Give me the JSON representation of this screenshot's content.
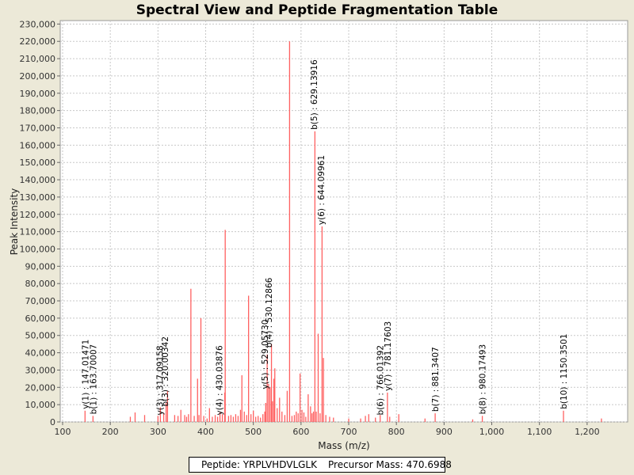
{
  "window": {
    "title": "Spectral View and Peptide Fragmentation Table"
  },
  "info": {
    "peptide": "Peptide: YRPLVHDVLGLK",
    "precursor": "Precursor Mass: 470.6988"
  },
  "colors": {
    "plot_bg": "#ffffff",
    "grid": "#c8c8c8",
    "peak": "#ff6060",
    "frame_bg": "#ECE9D8"
  },
  "chart_data": {
    "type": "bar",
    "title": "Spectral View and Peptide Fragmentation Table",
    "xlabel": "Mass (m/z)",
    "ylabel": "Peak Intensity",
    "xlim": [
      95,
      1285
    ],
    "ylim": [
      0,
      232000
    ],
    "grid": true,
    "x_ticks": [
      100,
      200,
      300,
      400,
      500,
      600,
      700,
      800,
      900,
      1000,
      1100,
      1200
    ],
    "x_tick_labels": [
      "100",
      "200",
      "300",
      "400",
      "500",
      "600",
      "700",
      "800",
      "900",
      "1,000",
      "1,100",
      "1,200"
    ],
    "y_ticks": [
      0,
      10000,
      20000,
      30000,
      40000,
      50000,
      60000,
      70000,
      80000,
      90000,
      100000,
      110000,
      120000,
      130000,
      140000,
      150000,
      160000,
      170000,
      180000,
      190000,
      200000,
      210000,
      220000,
      230000
    ],
    "y_tick_labels": [
      "0",
      "10,000",
      "20,000",
      "30,000",
      "40,000",
      "50,000",
      "60,000",
      "70,000",
      "80,000",
      "90,000",
      "100,000",
      "110,000",
      "120,000",
      "130,000",
      "140,000",
      "150,000",
      "160,000",
      "170,000",
      "180,000",
      "190,000",
      "200,000",
      "210,000",
      "220,000",
      "230,000"
    ],
    "peaks": [
      {
        "mz": 147.0,
        "intensity": 6500
      },
      {
        "mz": 163.7,
        "intensity": 3500
      },
      {
        "mz": 242.0,
        "intensity": 3000
      },
      {
        "mz": 252.0,
        "intensity": 5500
      },
      {
        "mz": 272.0,
        "intensity": 4000
      },
      {
        "mz": 300.0,
        "intensity": 3500
      },
      {
        "mz": 305.0,
        "intensity": 8500
      },
      {
        "mz": 312.0,
        "intensity": 5000
      },
      {
        "mz": 317.0,
        "intensity": 11000
      },
      {
        "mz": 320.0,
        "intensity": 18000
      },
      {
        "mz": 335.0,
        "intensity": 4000
      },
      {
        "mz": 342.0,
        "intensity": 3500
      },
      {
        "mz": 348.0,
        "intensity": 7000
      },
      {
        "mz": 356.0,
        "intensity": 4000
      },
      {
        "mz": 360.0,
        "intensity": 3000
      },
      {
        "mz": 364.0,
        "intensity": 4500
      },
      {
        "mz": 369.0,
        "intensity": 77000
      },
      {
        "mz": 376.0,
        "intensity": 3500
      },
      {
        "mz": 383.0,
        "intensity": 25000
      },
      {
        "mz": 386.0,
        "intensity": 4000
      },
      {
        "mz": 390.0,
        "intensity": 60000
      },
      {
        "mz": 396.0,
        "intensity": 3500
      },
      {
        "mz": 403.0,
        "intensity": 2000
      },
      {
        "mz": 408.0,
        "intensity": 8000
      },
      {
        "mz": 414.0,
        "intensity": 3000
      },
      {
        "mz": 420.0,
        "intensity": 4000
      },
      {
        "mz": 425.0,
        "intensity": 3000
      },
      {
        "mz": 430.0,
        "intensity": 5500
      },
      {
        "mz": 435.0,
        "intensity": 4500
      },
      {
        "mz": 440.0,
        "intensity": 17000
      },
      {
        "mz": 441.0,
        "intensity": 111000
      },
      {
        "mz": 448.0,
        "intensity": 3500
      },
      {
        "mz": 453.0,
        "intensity": 4000
      },
      {
        "mz": 458.0,
        "intensity": 3000
      },
      {
        "mz": 463.0,
        "intensity": 4500
      },
      {
        "mz": 468.0,
        "intensity": 3500
      },
      {
        "mz": 473.0,
        "intensity": 7000
      },
      {
        "mz": 476.0,
        "intensity": 27000
      },
      {
        "mz": 481.0,
        "intensity": 6000
      },
      {
        "mz": 486.0,
        "intensity": 4000
      },
      {
        "mz": 490.0,
        "intensity": 73000
      },
      {
        "mz": 495.0,
        "intensity": 4500
      },
      {
        "mz": 500.0,
        "intensity": 6500
      },
      {
        "mz": 505.0,
        "intensity": 3000
      },
      {
        "mz": 510.0,
        "intensity": 3500
      },
      {
        "mz": 515.0,
        "intensity": 2500
      },
      {
        "mz": 520.0,
        "intensity": 4500
      },
      {
        "mz": 524.0,
        "intensity": 6000
      },
      {
        "mz": 526.0,
        "intensity": 11000
      },
      {
        "mz": 529.0,
        "intensity": 39000
      },
      {
        "mz": 532.0,
        "intensity": 22000
      },
      {
        "mz": 535.0,
        "intensity": 20000
      },
      {
        "mz": 538.0,
        "intensity": 45000
      },
      {
        "mz": 540.0,
        "intensity": 12000
      },
      {
        "mz": 543.0,
        "intensity": 25000
      },
      {
        "mz": 545.0,
        "intensity": 31000
      },
      {
        "mz": 550.0,
        "intensity": 8000
      },
      {
        "mz": 555.0,
        "intensity": 14000
      },
      {
        "mz": 560.0,
        "intensity": 6000
      },
      {
        "mz": 566.0,
        "intensity": 4000
      },
      {
        "mz": 571.0,
        "intensity": 18000
      },
      {
        "mz": 576.0,
        "intensity": 220000
      },
      {
        "mz": 581.0,
        "intensity": 3500
      },
      {
        "mz": 586.0,
        "intensity": 4000
      },
      {
        "mz": 590.0,
        "intensity": 6000
      },
      {
        "mz": 594.0,
        "intensity": 5000
      },
      {
        "mz": 598.0,
        "intensity": 28000
      },
      {
        "mz": 602.0,
        "intensity": 7000
      },
      {
        "mz": 606.0,
        "intensity": 5500
      },
      {
        "mz": 610.0,
        "intensity": 3000
      },
      {
        "mz": 615.0,
        "intensity": 16000
      },
      {
        "mz": 620.0,
        "intensity": 9000
      },
      {
        "mz": 623.0,
        "intensity": 5000
      },
      {
        "mz": 626.0,
        "intensity": 6000
      },
      {
        "mz": 629.1,
        "intensity": 168000
      },
      {
        "mz": 632.0,
        "intensity": 6000
      },
      {
        "mz": 636.0,
        "intensity": 51000
      },
      {
        "mz": 640.0,
        "intensity": 5000
      },
      {
        "mz": 644.1,
        "intensity": 113000
      },
      {
        "mz": 647.0,
        "intensity": 37000
      },
      {
        "mz": 652.0,
        "intensity": 4000
      },
      {
        "mz": 660.0,
        "intensity": 3000
      },
      {
        "mz": 668.0,
        "intensity": 2500
      },
      {
        "mz": 700.0,
        "intensity": 2000
      },
      {
        "mz": 725.0,
        "intensity": 2000
      },
      {
        "mz": 735.0,
        "intensity": 3500
      },
      {
        "mz": 742.0,
        "intensity": 4500
      },
      {
        "mz": 756.0,
        "intensity": 2500
      },
      {
        "mz": 766.0,
        "intensity": 4000
      },
      {
        "mz": 781.2,
        "intensity": 17000
      },
      {
        "mz": 786.0,
        "intensity": 3000
      },
      {
        "mz": 805.0,
        "intensity": 4500
      },
      {
        "mz": 860.0,
        "intensity": 2000
      },
      {
        "mz": 881.3,
        "intensity": 5000
      },
      {
        "mz": 960.0,
        "intensity": 1500
      },
      {
        "mz": 980.2,
        "intensity": 3500
      },
      {
        "mz": 1150.4,
        "intensity": 6500
      },
      {
        "mz": 1230.0,
        "intensity": 2000
      }
    ],
    "annotations": [
      {
        "text": "y(1) : 147.01471",
        "mz": 147.0,
        "intensity": 6500
      },
      {
        "text": "b(1) : 163.70007",
        "mz": 163.7,
        "intensity": 3500
      },
      {
        "text": "y(3) : 317.09158",
        "mz": 303.5,
        "intensity": 3000
      },
      {
        "text": "b(3) : 320.00342",
        "mz": 314.5,
        "intensity": 8000
      },
      {
        "text": "y(4) : 430.03876",
        "mz": 428.0,
        "intensity": 3000
      },
      {
        "text": "y(5) : 529.05730",
        "mz": 524.0,
        "intensity": 18000
      },
      {
        "text": "b(4) : 530.12866",
        "mz": 532.0,
        "intensity": 42000
      },
      {
        "text": "b(5) : 629.13916",
        "mz": 627.0,
        "intensity": 168000
      },
      {
        "text": "y(6) : 644.09961",
        "mz": 642.0,
        "intensity": 113000
      },
      {
        "text": "b(6) : 766.01392",
        "mz": 766.0,
        "intensity": 3000
      },
      {
        "text": "y(7) : 781.17603",
        "mz": 781.2,
        "intensity": 17000
      },
      {
        "text": "b(7) : 881.3407",
        "mz": 881.3,
        "intensity": 5000
      },
      {
        "text": "b(8) : 980.17493",
        "mz": 980.2,
        "intensity": 3500
      },
      {
        "text": "b(10) : 1150.3501",
        "mz": 1150.4,
        "intensity": 6500
      }
    ]
  }
}
